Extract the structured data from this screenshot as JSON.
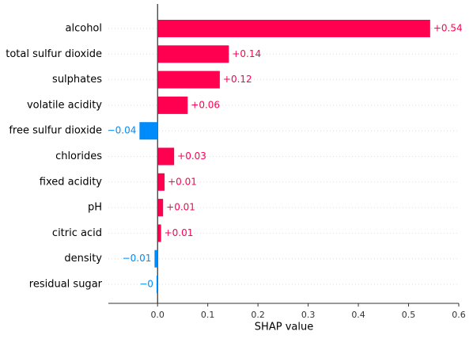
{
  "chart_data": {
    "type": "bar",
    "orientation": "horizontal",
    "categories": [
      "alcohol",
      "total sulfur dioxide",
      "sulphates",
      "volatile acidity",
      "free sulfur dioxide",
      "chlorides",
      "fixed acidity",
      "pH",
      "citric acid",
      "density",
      "residual sugar"
    ],
    "values": [
      0.543,
      0.142,
      0.124,
      0.06,
      -0.036,
      0.033,
      0.014,
      0.011,
      0.007,
      -0.006,
      -0.002
    ],
    "value_labels": [
      "+0.54",
      "+0.14",
      "+0.12",
      "+0.06",
      "−0.04",
      "+0.03",
      "+0.01",
      "+0.01",
      "+0.01",
      "−0.01",
      "−0"
    ],
    "positive_color": "#ff0051",
    "negative_color": "#008bfb",
    "xlabel": "SHAP value",
    "xlim": [
      -0.098,
      0.6
    ],
    "xticks": [
      {
        "value": 0,
        "label": "0.0"
      },
      0.1,
      0.2,
      0.3,
      0.4,
      0.5,
      0.6
    ]
  }
}
